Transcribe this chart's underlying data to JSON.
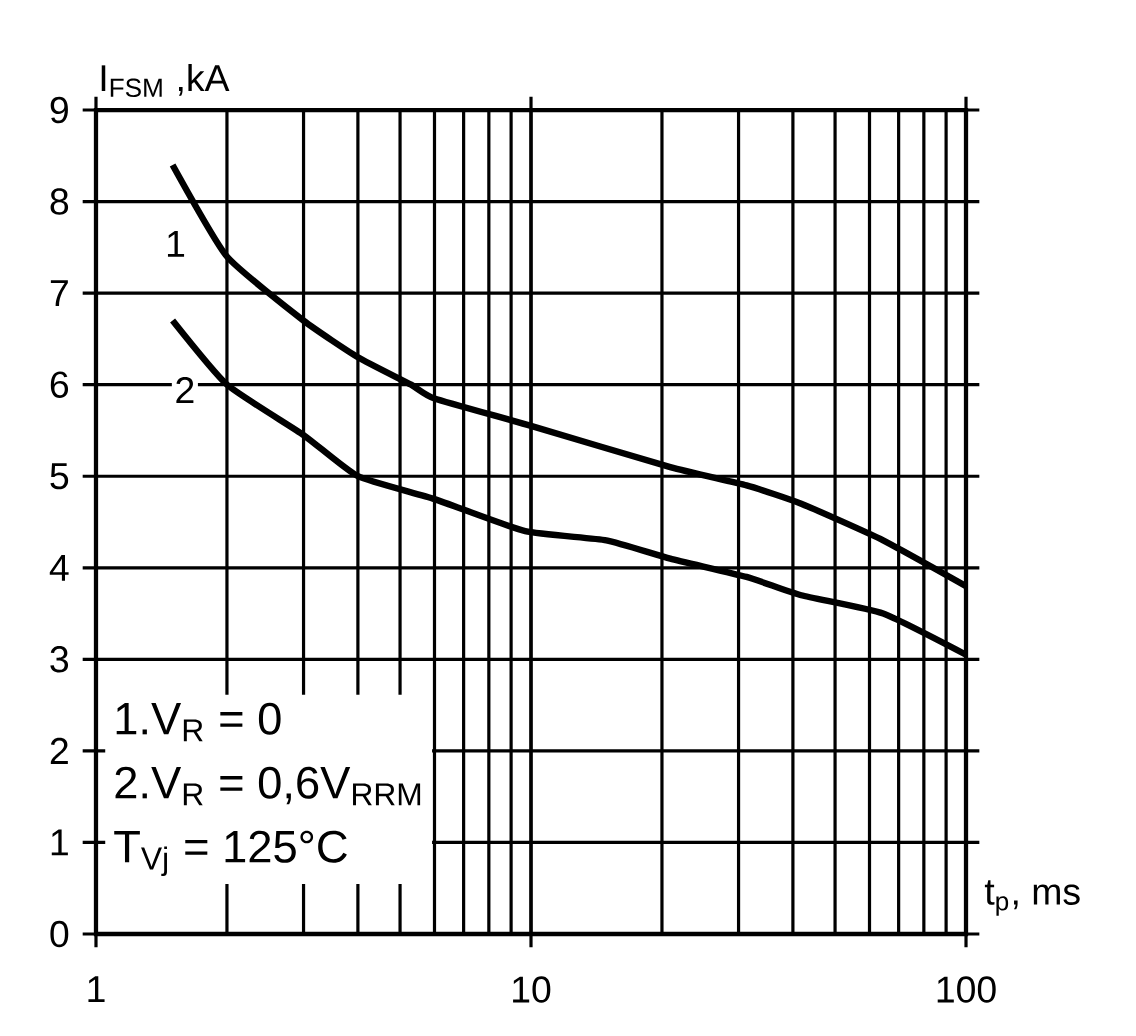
{
  "chart_data": {
    "type": "line",
    "ylabel": "I$_{FSM}$ ,kA",
    "xlabel": "t$_{p}$, ms",
    "log": "x",
    "xlim": [
      1,
      100
    ],
    "ylim": [
      0,
      9
    ],
    "xticks": [
      1,
      10,
      100
    ],
    "yticks": [
      0,
      1,
      2,
      3,
      4,
      5,
      6,
      7,
      8,
      9
    ],
    "grid": true,
    "series": [
      {
        "name": "1",
        "color": "#000000",
        "x": [
          1.5,
          2,
          3,
          4,
          5.3,
          6,
          10,
          20.9,
          31.3,
          41.8,
          64.5,
          100
        ],
        "values": [
          8.4,
          7.4,
          6.7,
          6.3,
          6.0,
          5.85,
          5.55,
          5.1,
          4.9,
          4.7,
          4.3,
          3.8
        ]
      },
      {
        "name": "2",
        "color": "#000000",
        "x": [
          1.5,
          2,
          3,
          4,
          6,
          9.7,
          14.9,
          20.9,
          31.3,
          41.8,
          64.5,
          100
        ],
        "values": [
          6.7,
          6.0,
          5.45,
          5.0,
          4.75,
          4.4,
          4.3,
          4.1,
          3.9,
          3.7,
          3.5,
          3.05
        ]
      }
    ],
    "annotations": [
      "1.V$_{R}$ = 0",
      "2.V$_{R}$ = 0,6V$_{RRM}$",
      "T$_{Vj}$ = 125°C"
    ]
  }
}
